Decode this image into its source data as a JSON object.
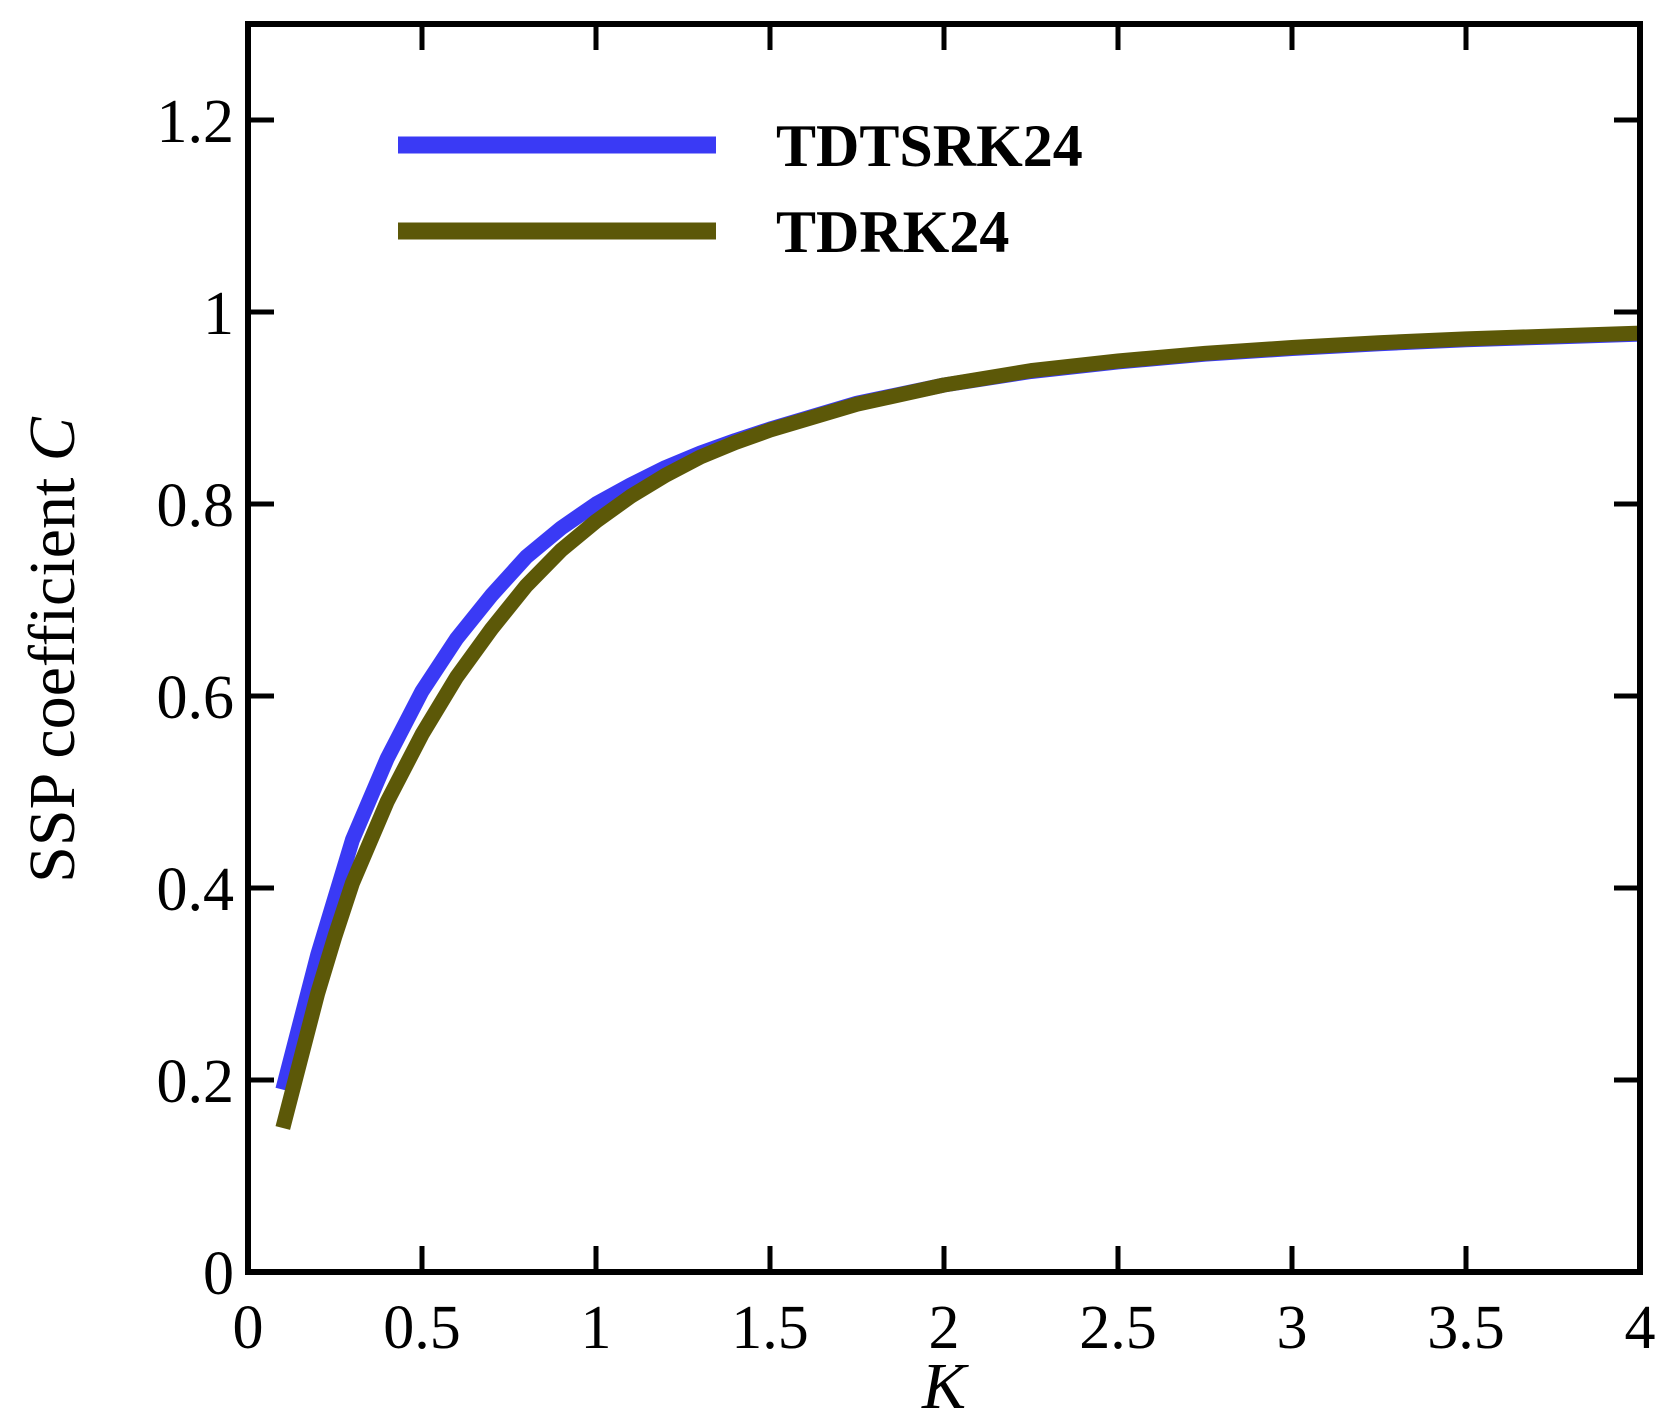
{
  "chart_data": {
    "type": "line",
    "title": "",
    "xlabel": "K",
    "ylabel": {
      "text": "SSP coefficient ",
      "symbol": "C"
    },
    "xlim": [
      0,
      4
    ],
    "ylim": [
      0,
      1.3
    ],
    "xticks": [
      0,
      0.5,
      1,
      1.5,
      2,
      2.5,
      3,
      3.5,
      4
    ],
    "xtick_labels": [
      "0",
      "0.5",
      "1",
      "1.5",
      "2",
      "2.5",
      "3",
      "3.5",
      "4"
    ],
    "yticks": [
      0,
      0.2,
      0.4,
      0.6,
      0.8,
      1,
      1.2
    ],
    "ytick_labels": [
      "0",
      "0.2",
      "0.4",
      "0.6",
      "0.8",
      "1",
      "1.2"
    ],
    "grid": false,
    "legend_position": "top-left",
    "series": [
      {
        "name": "TDTSRK24",
        "color": "#3a3af5",
        "x": [
          0.1,
          0.15,
          0.2,
          0.25,
          0.3,
          0.4,
          0.5,
          0.6,
          0.7,
          0.8,
          0.9,
          1.0,
          1.1,
          1.2,
          1.3,
          1.4,
          1.5,
          1.75,
          2.0,
          2.25,
          2.5,
          2.75,
          3.0,
          3.25,
          3.5,
          3.75,
          4.0
        ],
        "y": [
          0.19,
          0.26,
          0.33,
          0.39,
          0.45,
          0.535,
          0.605,
          0.66,
          0.705,
          0.745,
          0.775,
          0.8,
          0.82,
          0.838,
          0.853,
          0.866,
          0.878,
          0.905,
          0.924,
          0.938,
          0.948,
          0.956,
          0.962,
          0.967,
          0.971,
          0.974,
          0.977
        ]
      },
      {
        "name": "TDRK24",
        "color": "#5c5808",
        "x": [
          0.1,
          0.15,
          0.2,
          0.25,
          0.3,
          0.4,
          0.5,
          0.6,
          0.7,
          0.8,
          0.9,
          1.0,
          1.1,
          1.2,
          1.3,
          1.4,
          1.5,
          1.75,
          2.0,
          2.25,
          2.5,
          2.75,
          3.0,
          3.25,
          3.5,
          3.75,
          4.0
        ],
        "y": [
          0.15,
          0.22,
          0.29,
          0.35,
          0.405,
          0.49,
          0.56,
          0.62,
          0.67,
          0.715,
          0.752,
          0.782,
          0.808,
          0.83,
          0.849,
          0.864,
          0.877,
          0.904,
          0.924,
          0.939,
          0.949,
          0.957,
          0.963,
          0.968,
          0.972,
          0.975,
          0.978
        ]
      }
    ]
  }
}
